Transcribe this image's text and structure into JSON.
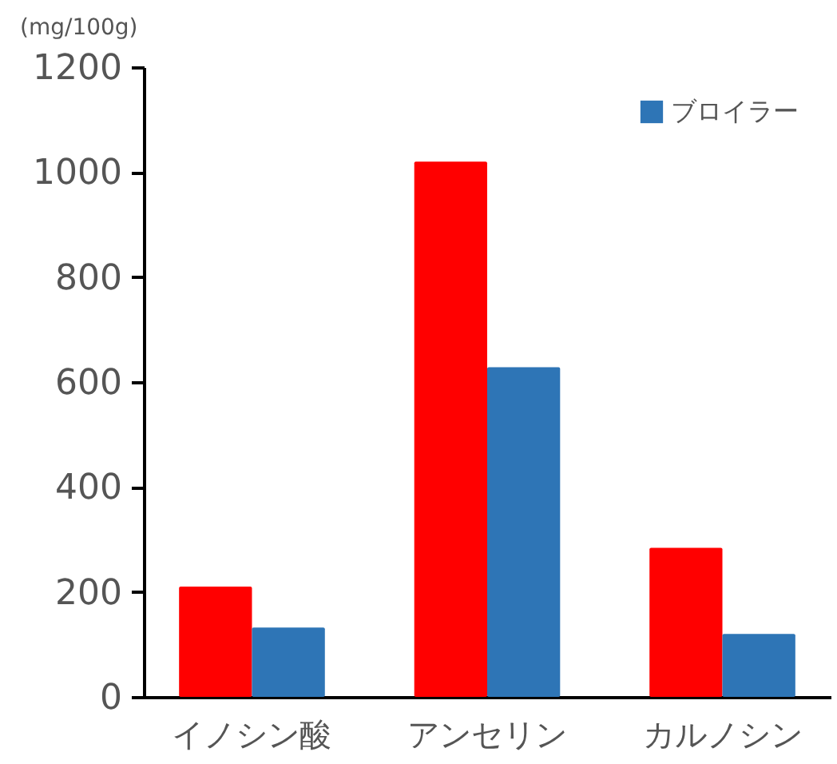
{
  "chart_data": {
    "type": "bar",
    "ylabel": "(mg/100g)",
    "categories": [
      "イノシン酸",
      "アンセリン",
      "カルノシン"
    ],
    "series": [
      {
        "color": "#ff0000",
        "values": [
          210,
          1020,
          284
        ]
      },
      {
        "name": "ブロイラー",
        "color": "#2e75b6",
        "values": [
          132,
          628,
          120
        ]
      }
    ],
    "ylim": [
      0,
      1200
    ],
    "yticks": [
      0,
      200,
      400,
      600,
      800,
      1000,
      1200
    ],
    "grid": false,
    "legend": "top right"
  }
}
